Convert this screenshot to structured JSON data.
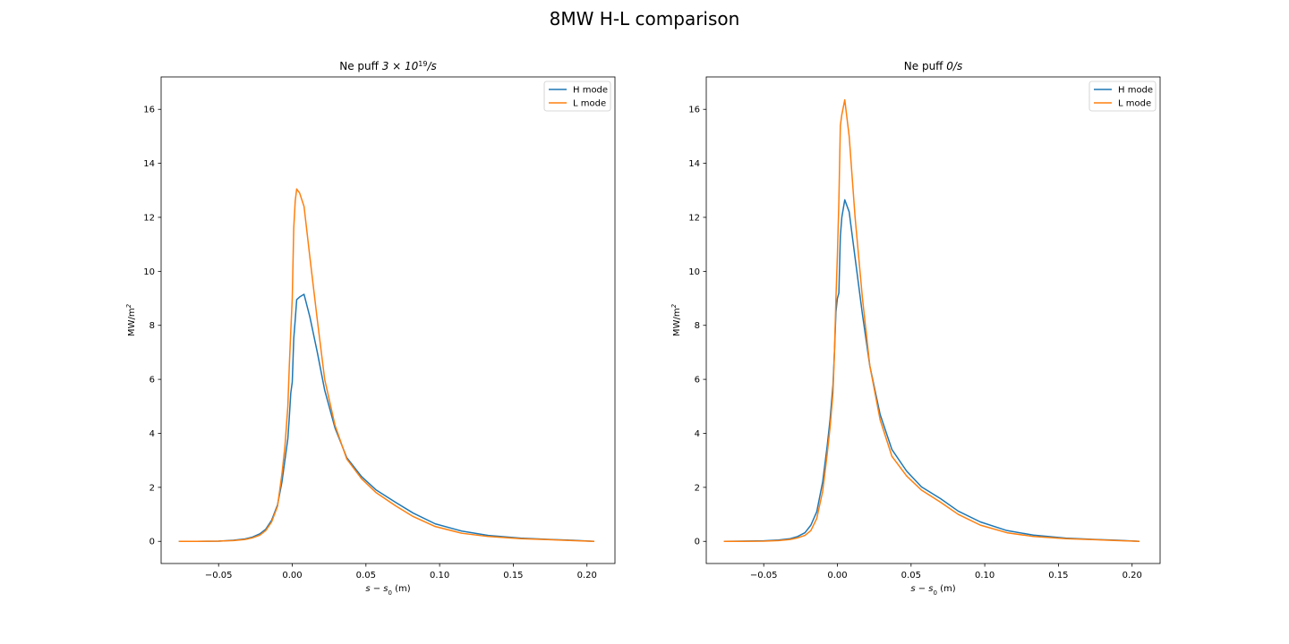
{
  "figure": {
    "suptitle": "8MW H-L comparison"
  },
  "colors": {
    "h_mode": "#1f77b4",
    "l_mode": "#ff7f0e"
  },
  "chart_data": [
    {
      "type": "line",
      "title_prefix": "Ne puff ",
      "title_math_base": "3 × 10",
      "title_math_exp": "19",
      "title_suffix": "/s",
      "xlabel_main": "s − s",
      "xlabel_sub": "0",
      "xlabel_unit": " (m)",
      "ylabel_main": "MW/m",
      "ylabel_sup": "2",
      "xlim": [
        -0.089,
        0.219
      ],
      "ylim": [
        -0.82,
        17.2
      ],
      "xticks": [
        -0.05,
        0.0,
        0.05,
        0.1,
        0.15,
        0.2
      ],
      "xtick_labels": [
        "−0.05",
        "0.00",
        "0.05",
        "0.10",
        "0.15",
        "0.20"
      ],
      "yticks": [
        0,
        2,
        4,
        6,
        8,
        10,
        12,
        14,
        16
      ],
      "ytick_labels": [
        "0",
        "2",
        "4",
        "6",
        "8",
        "10",
        "12",
        "14",
        "16"
      ],
      "legend_position": "top-right",
      "series": [
        {
          "name": "H mode",
          "x": [
            -0.077,
            -0.065,
            -0.05,
            -0.04,
            -0.032,
            -0.027,
            -0.022,
            -0.018,
            -0.014,
            -0.01,
            -0.007,
            -0.005,
            -0.003,
            -0.002,
            -0.001,
            0.0,
            0.001,
            0.002,
            0.003,
            0.005,
            0.008,
            0.012,
            0.017,
            0.022,
            0.029,
            0.037,
            0.047,
            0.057,
            0.07,
            0.082,
            0.097,
            0.115,
            0.133,
            0.155,
            0.175,
            0.19,
            0.205
          ],
          "y": [
            0.0,
            0.0,
            0.01,
            0.04,
            0.09,
            0.16,
            0.28,
            0.45,
            0.78,
            1.35,
            2.2,
            3.0,
            3.8,
            4.6,
            5.5,
            5.9,
            7.5,
            8.2,
            8.95,
            9.05,
            9.15,
            8.3,
            7.0,
            5.6,
            4.2,
            3.1,
            2.4,
            1.9,
            1.45,
            1.05,
            0.65,
            0.38,
            0.22,
            0.12,
            0.07,
            0.04,
            0.0
          ]
        },
        {
          "name": "L mode",
          "x": [
            -0.077,
            -0.065,
            -0.05,
            -0.04,
            -0.032,
            -0.027,
            -0.022,
            -0.018,
            -0.014,
            -0.01,
            -0.007,
            -0.005,
            -0.003,
            -0.002,
            -0.001,
            0.0,
            0.001,
            0.002,
            0.003,
            0.005,
            0.008,
            0.012,
            0.017,
            0.022,
            0.029,
            0.037,
            0.047,
            0.057,
            0.07,
            0.082,
            0.097,
            0.115,
            0.133,
            0.155,
            0.175,
            0.19,
            0.205
          ],
          "y": [
            0.0,
            0.0,
            0.01,
            0.03,
            0.07,
            0.13,
            0.23,
            0.4,
            0.72,
            1.3,
            2.5,
            3.5,
            5.0,
            6.5,
            7.8,
            9.0,
            11.6,
            12.6,
            13.05,
            12.9,
            12.4,
            10.5,
            8.2,
            6.0,
            4.3,
            3.05,
            2.32,
            1.8,
            1.32,
            0.92,
            0.55,
            0.3,
            0.18,
            0.1,
            0.06,
            0.03,
            0.0
          ]
        }
      ]
    },
    {
      "type": "line",
      "title_prefix": "Ne puff ",
      "title_math_base": "0",
      "title_math_exp": "",
      "title_suffix": "/s",
      "xlabel_main": "s − s",
      "xlabel_sub": "0",
      "xlabel_unit": " (m)",
      "ylabel_main": "MW/m",
      "ylabel_sup": "2",
      "xlim": [
        -0.089,
        0.219
      ],
      "ylim": [
        -0.82,
        17.2
      ],
      "xticks": [
        -0.05,
        0.0,
        0.05,
        0.1,
        0.15,
        0.2
      ],
      "xtick_labels": [
        "−0.05",
        "0.00",
        "0.05",
        "0.10",
        "0.15",
        "0.20"
      ],
      "yticks": [
        0,
        2,
        4,
        6,
        8,
        10,
        12,
        14,
        16
      ],
      "ytick_labels": [
        "0",
        "2",
        "4",
        "6",
        "8",
        "10",
        "12",
        "14",
        "16"
      ],
      "legend_position": "top-right",
      "series": [
        {
          "name": "H mode",
          "x": [
            -0.077,
            -0.065,
            -0.05,
            -0.04,
            -0.032,
            -0.027,
            -0.022,
            -0.018,
            -0.014,
            -0.01,
            -0.007,
            -0.005,
            -0.003,
            -0.002,
            -0.001,
            0.0,
            0.001,
            0.002,
            0.003,
            0.005,
            0.008,
            0.012,
            0.017,
            0.022,
            0.029,
            0.037,
            0.047,
            0.057,
            0.07,
            0.082,
            0.097,
            0.115,
            0.133,
            0.155,
            0.175,
            0.19,
            0.205
          ],
          "y": [
            0.0,
            0.01,
            0.02,
            0.05,
            0.1,
            0.18,
            0.32,
            0.6,
            1.1,
            2.2,
            3.5,
            4.5,
            5.8,
            7.0,
            8.5,
            9.0,
            9.2,
            11.3,
            12.0,
            12.65,
            12.2,
            10.5,
            8.4,
            6.5,
            4.7,
            3.4,
            2.6,
            2.02,
            1.58,
            1.12,
            0.72,
            0.4,
            0.23,
            0.12,
            0.07,
            0.04,
            0.0
          ]
        },
        {
          "name": "L mode",
          "x": [
            -0.077,
            -0.065,
            -0.05,
            -0.04,
            -0.032,
            -0.027,
            -0.022,
            -0.018,
            -0.014,
            -0.01,
            -0.007,
            -0.005,
            -0.003,
            -0.002,
            -0.001,
            0.0,
            0.001,
            0.002,
            0.003,
            0.005,
            0.008,
            0.012,
            0.017,
            0.022,
            0.029,
            0.037,
            0.047,
            0.057,
            0.07,
            0.082,
            0.097,
            0.115,
            0.133,
            0.155,
            0.175,
            0.19,
            0.205
          ],
          "y": [
            0.0,
            0.0,
            0.01,
            0.03,
            0.07,
            0.13,
            0.22,
            0.4,
            0.85,
            1.85,
            3.2,
            4.2,
            5.5,
            7.0,
            9.0,
            10.6,
            12.6,
            15.4,
            15.8,
            16.35,
            15.0,
            12.0,
            9.0,
            6.5,
            4.5,
            3.15,
            2.42,
            1.9,
            1.45,
            1.0,
            0.6,
            0.32,
            0.18,
            0.1,
            0.06,
            0.03,
            0.0
          ]
        }
      ]
    }
  ]
}
